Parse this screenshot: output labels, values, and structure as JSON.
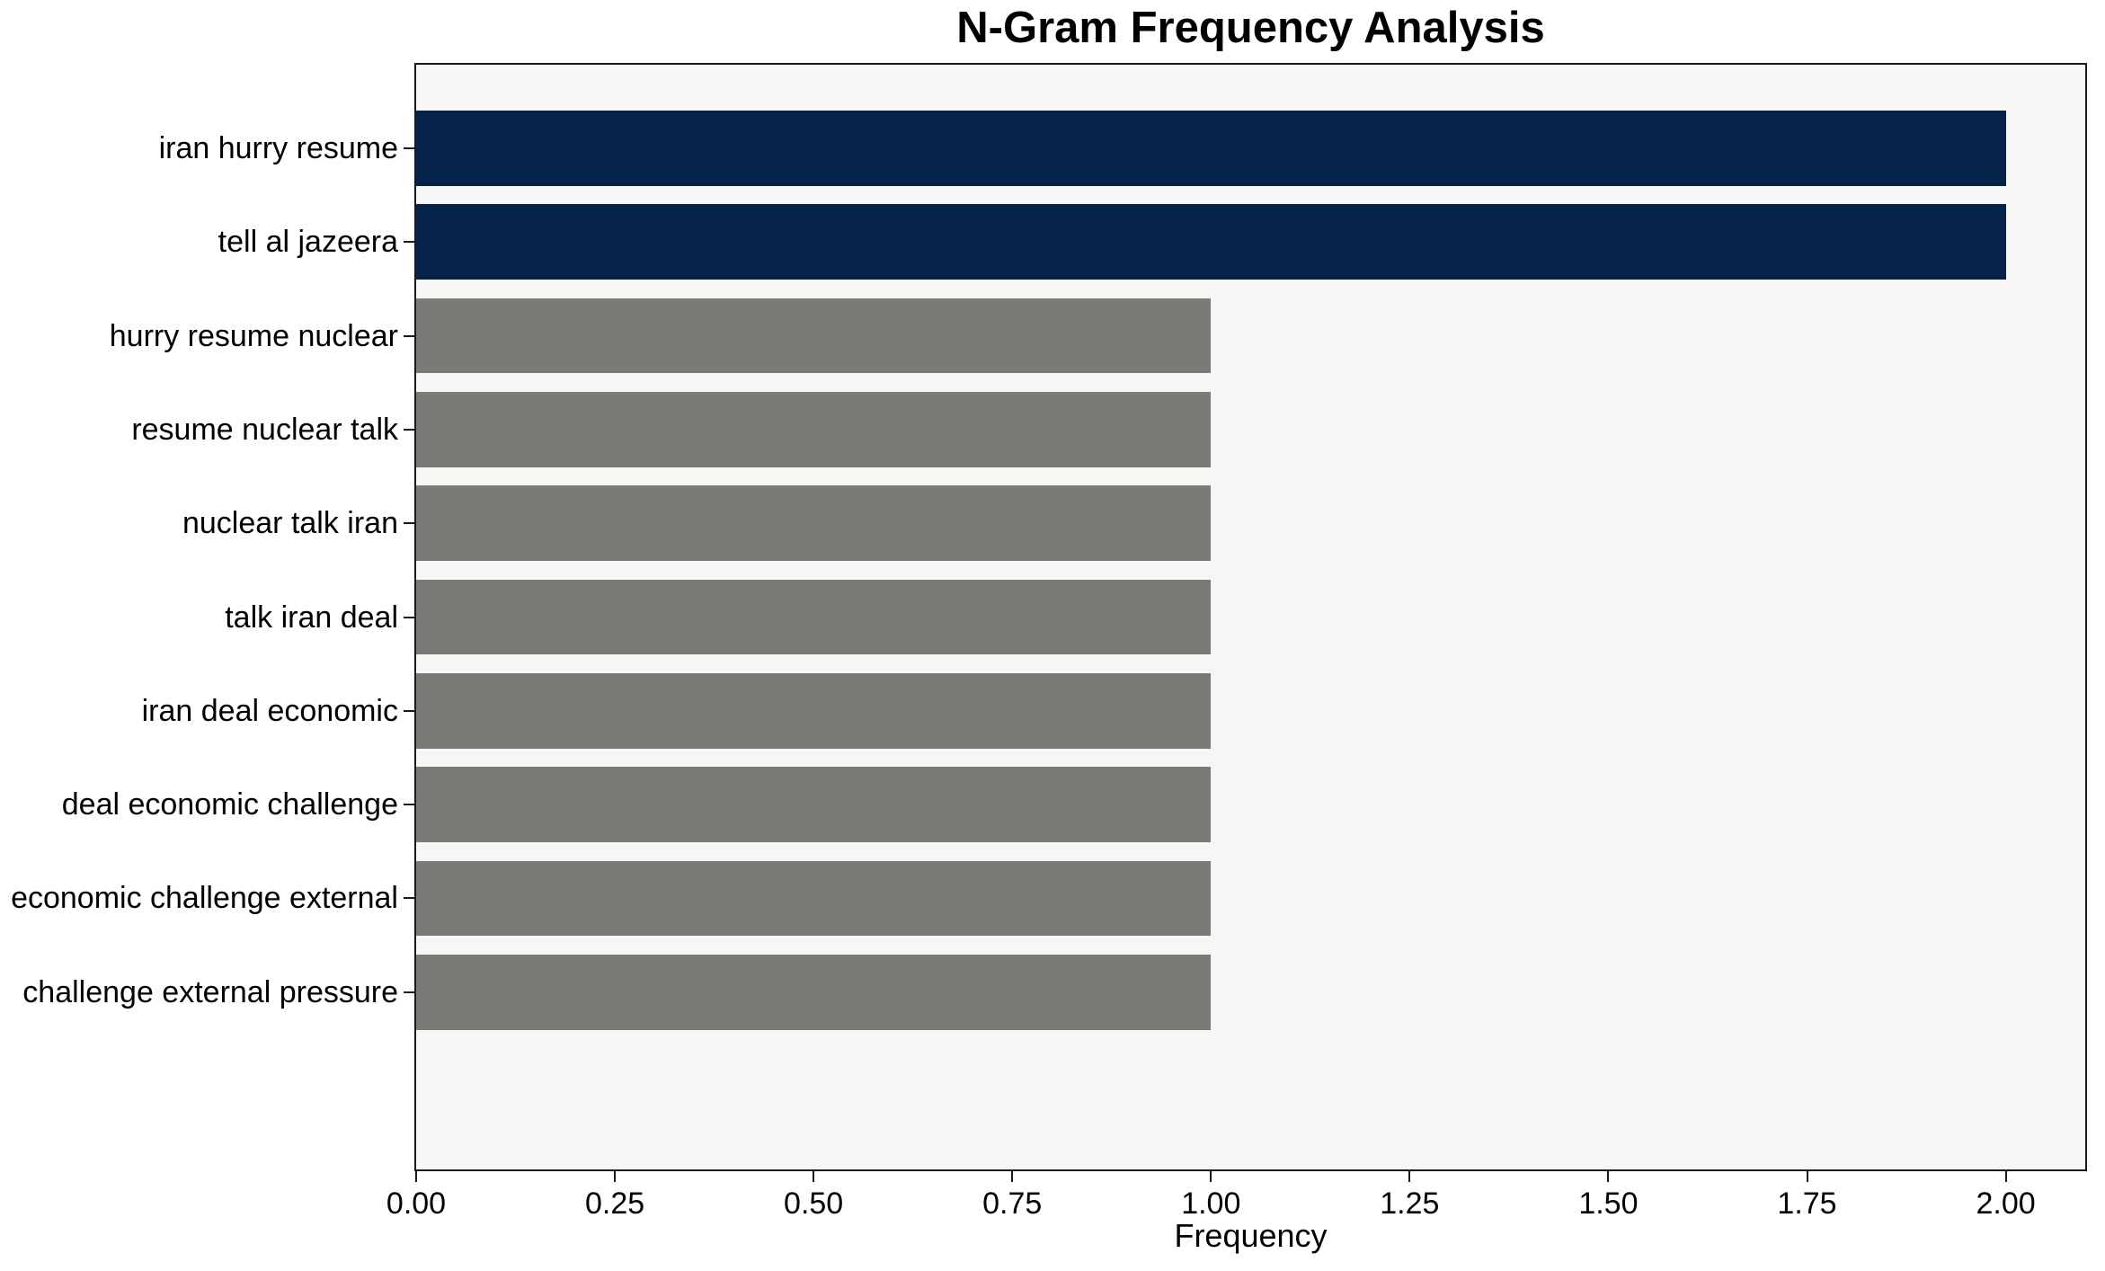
{
  "chart_data": {
    "type": "bar",
    "orientation": "horizontal",
    "title": "N-Gram Frequency Analysis",
    "xlabel": "Frequency",
    "ylabel": "",
    "categories": [
      "iran hurry resume",
      "tell al jazeera",
      "hurry resume nuclear",
      "resume nuclear talk",
      "nuclear talk iran",
      "talk iran deal",
      "iran deal economic",
      "deal economic challenge",
      "economic challenge external",
      "challenge external pressure"
    ],
    "values": [
      2,
      2,
      1,
      1,
      1,
      1,
      1,
      1,
      1,
      1
    ],
    "bar_colors": [
      "#062349",
      "#062349",
      "#7b7a77",
      "#7b7a77",
      "#7b7a77",
      "#7b7a77",
      "#7b7a77",
      "#7b7a77",
      "#7b7a77",
      "#7b7a77"
    ],
    "x_ticks": [
      {
        "value": 0.0,
        "label": "0.00"
      },
      {
        "value": 0.25,
        "label": "0.25"
      },
      {
        "value": 0.5,
        "label": "0.50"
      },
      {
        "value": 0.75,
        "label": "0.75"
      },
      {
        "value": 1.0,
        "label": "1.00"
      },
      {
        "value": 1.25,
        "label": "1.25"
      },
      {
        "value": 1.5,
        "label": "1.50"
      },
      {
        "value": 1.75,
        "label": "1.75"
      },
      {
        "value": 2.0,
        "label": "2.00"
      }
    ],
    "xlim": [
      0,
      2.1
    ],
    "bar_height_fraction": 0.8,
    "y_pad_units": 0.89,
    "grid": false,
    "legend": null,
    "colors": {
      "highlight": "#062349",
      "default_bar": "#7b7a77",
      "plot_background": "#f7f6f5",
      "figure_background": "#ffffff",
      "frame": "#1a1a1a",
      "text": "#000000"
    }
  }
}
